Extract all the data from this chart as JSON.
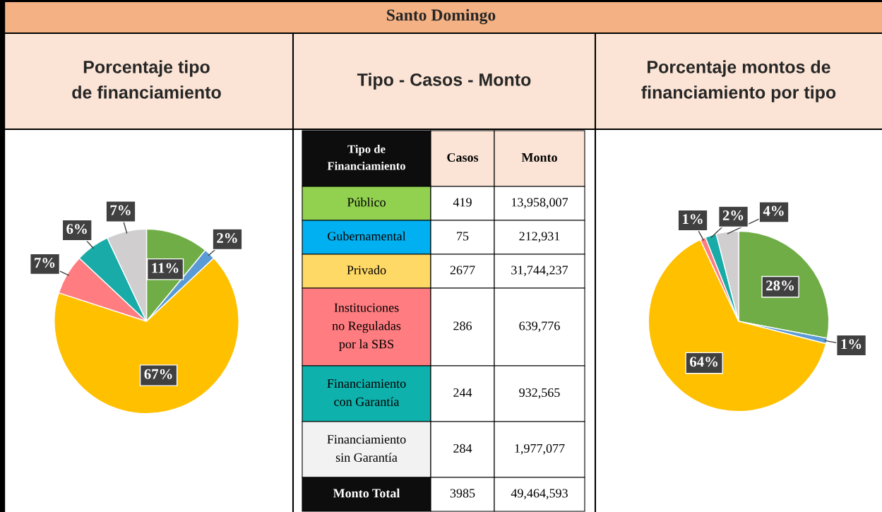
{
  "chart_data": [
    {
      "type": "pie",
      "title": "Porcentaje tipo de financiamiento",
      "categories": [
        null,
        null,
        null,
        null,
        null,
        null
      ],
      "values": [
        11,
        2,
        67,
        7,
        6,
        7
      ],
      "colors": [
        "#70ad47",
        "#5b9bd5",
        "#ffc000",
        "#ff7c80",
        "#18aba7",
        "#d0cece"
      ],
      "value_labels": [
        "11%",
        "2%",
        "67%",
        "7%",
        "6%",
        "7%"
      ]
    },
    {
      "type": "other",
      "subtitle": "Santo Domingo",
      "title": "Tipo - Casos - Monto",
      "annotations": [
        "Tipo de Financiamiento",
        "Casos",
        "Monto",
        "Público",
        "419",
        "13,958,007",
        "Gubernamental",
        "75",
        "212,931",
        "Privado",
        "2677",
        "31,744,237",
        "Instituciones no Reguladas por la SBS",
        "286",
        "639,776",
        "Financiamiento con Garantía",
        "244",
        "932,565",
        "Financiamiento sin Garantía",
        "284",
        "1,977,077",
        "Monto Total",
        "3985",
        "49,464,593"
      ],
      "colors": [
        "#0d0d0d",
        "#fbe4d5",
        "#fbe4d5",
        "#92d050",
        "#ffffff",
        "#ffffff",
        "#00b0f0",
        "#ffffff",
        "#ffffff",
        "#ffd966",
        "#ffffff",
        "#ffffff",
        "#ff7c80",
        "#ffffff",
        "#ffffff",
        "#0fb1ac",
        "#ffffff",
        "#ffffff",
        "#f2f2f2",
        "#ffffff",
        "#ffffff",
        "#0d0d0d",
        "#ffffff",
        "#ffffff"
      ]
    },
    {
      "type": "pie",
      "title": "Porcentaje montos de financiamiento por tipo",
      "categories": [
        null,
        null,
        null,
        null,
        null,
        null
      ],
      "values": [
        28,
        1,
        64,
        1,
        2,
        4
      ],
      "colors": [
        "#70ad47",
        "#5b9bd5",
        "#ffc000",
        "#ff7c80",
        "#18aba7",
        "#d0cece"
      ],
      "value_labels": [
        "28%",
        "1%",
        "64%",
        "1%",
        "2%",
        "4%"
      ]
    }
  ]
}
